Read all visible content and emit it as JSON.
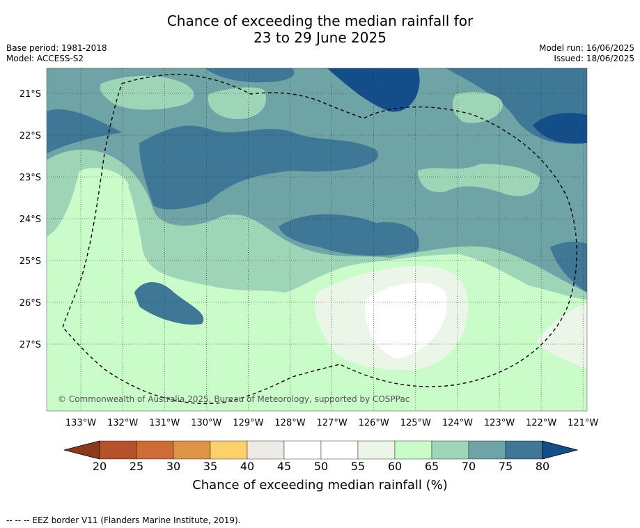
{
  "header": {
    "title_line1": "Chance of exceeding the median rainfall for",
    "title_line2": "23 to 29 June 2025",
    "base_period": "Base period: 1981-2018",
    "model": "Model: ACCESS-S2",
    "model_run": "Model run: 16/06/2025",
    "issued": "Issued: 18/06/2025"
  },
  "map": {
    "lat_labels": [
      "21°S",
      "22°S",
      "23°S",
      "24°S",
      "25°S",
      "26°S",
      "27°S"
    ],
    "lon_labels": [
      "133°W",
      "132°W",
      "131°W",
      "130°W",
      "129°W",
      "128°W",
      "127°W",
      "126°W",
      "125°W",
      "124°W",
      "123°W",
      "122°W",
      "121°W"
    ],
    "copyright": "© Commonwealth of Australia 2025, Bureau of Meteorology, supported by COSPPac"
  },
  "colorbar": {
    "ticks": [
      "20",
      "25",
      "30",
      "35",
      "40",
      "45",
      "50",
      "55",
      "60",
      "65",
      "70",
      "75",
      "80"
    ],
    "colors": [
      "#b5522b",
      "#cf6c35",
      "#e09445",
      "#fdd06c",
      "#eeeae6",
      "#ffffff",
      "#ffffff",
      "#ebf6e9",
      "#c9fcc8",
      "#9ed5b7",
      "#6fa4a6",
      "#3f7797"
    ],
    "low_color": "#8c3a1e",
    "high_color": "#144e8a",
    "title": "Chance of exceeding median rainfall (%)"
  },
  "footnote": "--  --  -- EEZ border V11 (Flanders Marine Institute, 2019)."
}
